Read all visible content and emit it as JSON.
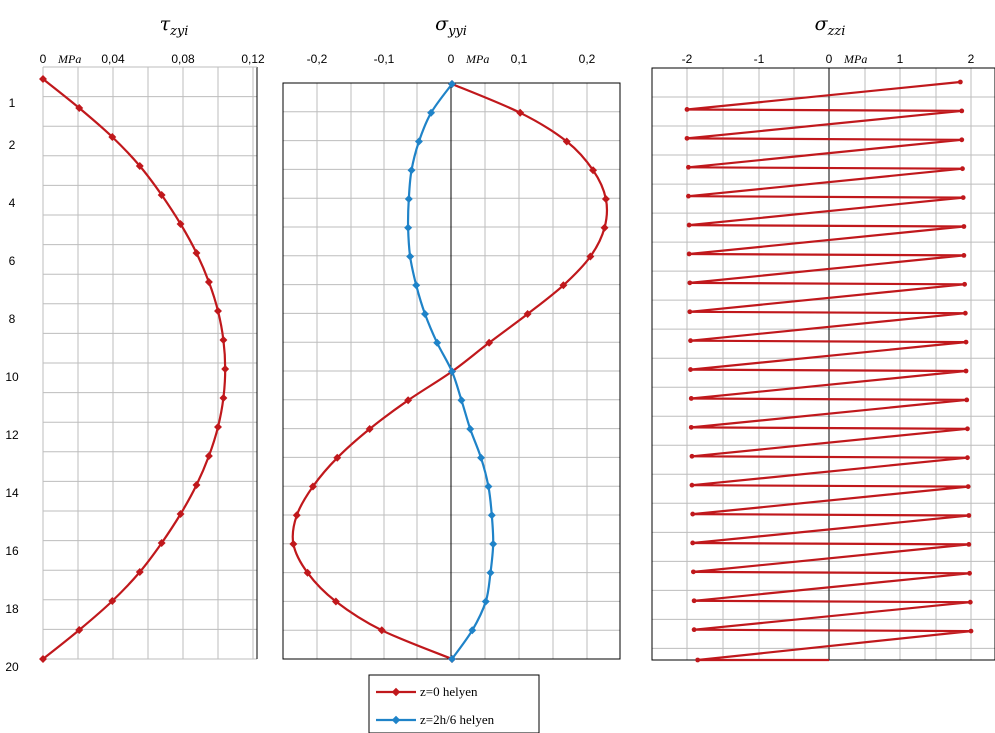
{
  "chart_data": [
    {
      "type": "line",
      "title_main": "τ",
      "title_sub": "zyi",
      "unit": "MPa",
      "x_ticks": [
        "0",
        "0,04",
        "0,08",
        "0,12"
      ],
      "xlim": [
        0,
        0.12
      ],
      "ylim": [
        0,
        20
      ],
      "y_tick_labels": [
        "1",
        "2",
        "4",
        "6",
        "8",
        "10",
        "12",
        "14",
        "16",
        "18",
        "20"
      ],
      "series": [
        {
          "color": "#c0181c",
          "points": [
            [
              0,
              0
            ],
            [
              0.0207,
              1
            ],
            [
              0.0396,
              2
            ],
            [
              0.0553,
              3
            ],
            [
              0.0678,
              4
            ],
            [
              0.0786,
              5
            ],
            [
              0.0877,
              6
            ],
            [
              0.0948,
              7
            ],
            [
              0.1,
              8
            ],
            [
              0.1031,
              9
            ],
            [
              0.1041,
              10
            ],
            [
              0.1031,
              11
            ],
            [
              0.1,
              12
            ],
            [
              0.0948,
              13
            ],
            [
              0.0877,
              14
            ],
            [
              0.0786,
              15
            ],
            [
              0.0678,
              16
            ],
            [
              0.0553,
              17
            ],
            [
              0.0396,
              18
            ],
            [
              0.0207,
              19
            ],
            [
              0,
              20
            ]
          ]
        }
      ]
    },
    {
      "type": "line",
      "title_main": "σ",
      "title_sub": "yyi",
      "unit": "MPa",
      "x_ticks": [
        "-0,2",
        "-0,1",
        "0",
        "0,1",
        "0,2"
      ],
      "xlim": [
        -0.25,
        0.25
      ],
      "ylim": [
        0,
        20
      ],
      "series": [
        {
          "name": "z=0 helyen",
          "color": "#c0181c",
          "points": [
            [
              0,
              0
            ],
            [
              0.101,
              1
            ],
            [
              0.17,
              2
            ],
            [
              0.209,
              3
            ],
            [
              0.228,
              4
            ],
            [
              0.226,
              5
            ],
            [
              0.205,
              6
            ],
            [
              0.165,
              7
            ],
            [
              0.112,
              8
            ],
            [
              0.055,
              9
            ],
            [
              0,
              10
            ],
            [
              -0.065,
              11
            ],
            [
              -0.122,
              12
            ],
            [
              -0.17,
              13
            ],
            [
              -0.206,
              14
            ],
            [
              -0.23,
              15
            ],
            [
              -0.235,
              16
            ],
            [
              -0.214,
              17
            ],
            [
              -0.172,
              18
            ],
            [
              -0.104,
              19
            ],
            [
              0,
              20
            ]
          ]
        },
        {
          "name": "z=2h/6 helyen",
          "color": "#1f83c8",
          "points": [
            [
              0,
              0
            ],
            [
              -0.031,
              1
            ],
            [
              -0.049,
              2
            ],
            [
              -0.06,
              3
            ],
            [
              -0.064,
              4
            ],
            [
              -0.065,
              5
            ],
            [
              -0.062,
              6
            ],
            [
              -0.053,
              7
            ],
            [
              -0.04,
              8
            ],
            [
              -0.022,
              9
            ],
            [
              0,
              10
            ],
            [
              0.014,
              11
            ],
            [
              0.027,
              12
            ],
            [
              0.043,
              13
            ],
            [
              0.054,
              14
            ],
            [
              0.059,
              15
            ],
            [
              0.061,
              16
            ],
            [
              0.057,
              17
            ],
            [
              0.05,
              18
            ],
            [
              0.03,
              19
            ],
            [
              0,
              20
            ]
          ]
        }
      ]
    },
    {
      "type": "line",
      "title_main": "σ",
      "title_sub": "zzi",
      "unit": "MPa",
      "x_ticks": [
        "-2",
        "-1",
        "0",
        "1",
        "2"
      ],
      "xlim": [
        -2.4,
        2.4
      ],
      "ylim": [
        0,
        20.4
      ],
      "series": [
        {
          "color": "#c0181c",
          "points": [
            [
              1.85,
              0
            ],
            [
              -2.0,
              0.95
            ],
            [
              1.87,
              1.0
            ],
            [
              -2.0,
              1.95
            ],
            [
              1.87,
              2.0
            ],
            [
              -1.98,
              2.95
            ],
            [
              1.88,
              3.0
            ],
            [
              -1.98,
              3.95
            ],
            [
              1.89,
              4.0
            ],
            [
              -1.97,
              4.95
            ],
            [
              1.9,
              5.0
            ],
            [
              -1.97,
              5.95
            ],
            [
              1.9,
              6.0
            ],
            [
              -1.96,
              6.95
            ],
            [
              1.91,
              7.0
            ],
            [
              -1.96,
              7.95
            ],
            [
              1.92,
              8.0
            ],
            [
              -1.95,
              8.95
            ],
            [
              1.93,
              9.0
            ],
            [
              -1.95,
              9.95
            ],
            [
              1.93,
              10.0
            ],
            [
              -1.94,
              10.95
            ],
            [
              1.94,
              11.0
            ],
            [
              -1.94,
              11.95
            ],
            [
              1.95,
              12.0
            ],
            [
              -1.93,
              12.95
            ],
            [
              1.95,
              13.0
            ],
            [
              -1.93,
              13.95
            ],
            [
              1.96,
              14.0
            ],
            [
              -1.92,
              14.95
            ],
            [
              1.97,
              15.0
            ],
            [
              -1.92,
              15.95
            ],
            [
              1.97,
              16.0
            ],
            [
              -1.91,
              16.95
            ],
            [
              1.98,
              17.0
            ],
            [
              -1.9,
              17.95
            ],
            [
              1.99,
              18.0
            ],
            [
              -1.9,
              18.95
            ],
            [
              2.0,
              19.0
            ],
            [
              -1.85,
              20.0
            ],
            [
              0,
              20.0
            ]
          ]
        }
      ]
    }
  ],
  "legend": {
    "items": [
      {
        "label": "z=0 helyen",
        "color": "#c0181c"
      },
      {
        "label": "z=2h/6 helyen",
        "color": "#1f83c8"
      }
    ]
  }
}
